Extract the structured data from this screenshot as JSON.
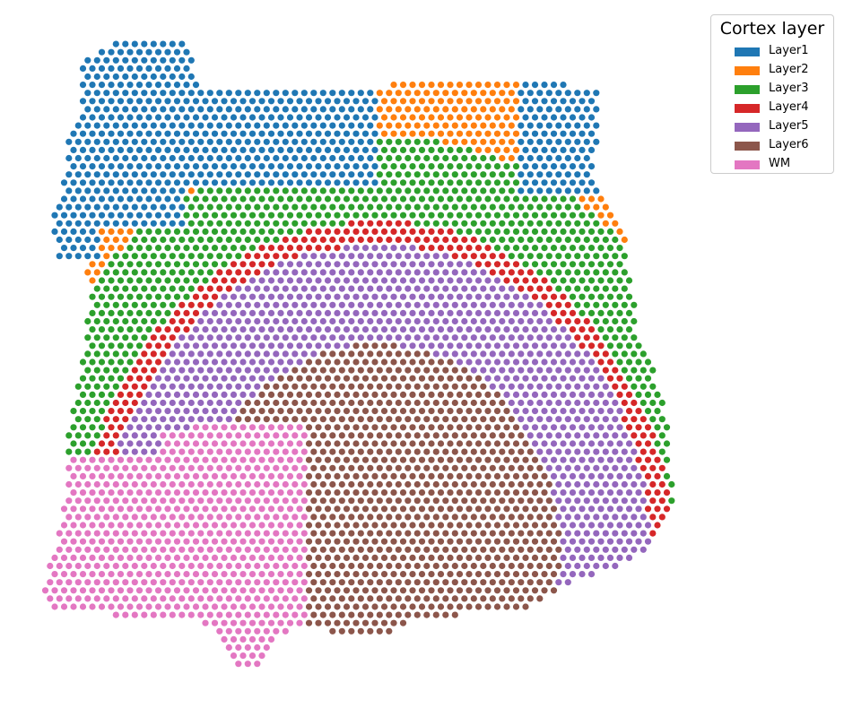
{
  "chart_data": {
    "type": "scatter",
    "title": "",
    "xlabel": "",
    "ylabel": "",
    "axes": "off",
    "grid": false,
    "legend_title": "Cortex layer",
    "legend_placement": "top-right",
    "categories": [
      "Layer1",
      "Layer2",
      "Layer3",
      "Layer4",
      "Layer5",
      "Layer6",
      "WM"
    ],
    "colors": {
      "Layer1": "#1f77b4",
      "Layer2": "#ff7f0e",
      "Layer3": "#2ca02c",
      "Layer4": "#d62728",
      "Layer5": "#9467bd",
      "Layer6": "#8c564b",
      "WM": "#e377c2"
    }
  }
}
